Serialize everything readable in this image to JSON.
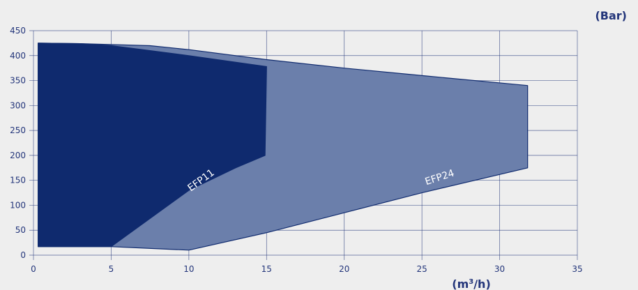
{
  "chart_data": {
    "type": "area",
    "title": "",
    "xlabel_prefix": "(m",
    "xlabel_sup": "3",
    "xlabel_suffix": "/h)",
    "ylabel": "(Bar)",
    "xlim": [
      0,
      35
    ],
    "ylim": [
      0,
      450
    ],
    "x_ticks": [
      "0",
      "5",
      "10",
      "15",
      "20",
      "25",
      "30",
      "35"
    ],
    "y_ticks": [
      "0",
      "50",
      "100",
      "150",
      "200",
      "250",
      "300",
      "350",
      "400",
      "450"
    ],
    "grid": true,
    "series": [
      {
        "name": "EFP24",
        "color": "#6b7fab",
        "points": [
          [
            0.3,
            425
          ],
          [
            3,
            424
          ],
          [
            7.5,
            420
          ],
          [
            10,
            412
          ],
          [
            15,
            392
          ],
          [
            20,
            375
          ],
          [
            25,
            360
          ],
          [
            31.8,
            340
          ],
          [
            31.8,
            175
          ],
          [
            25,
            125
          ],
          [
            20,
            85
          ],
          [
            15,
            45
          ],
          [
            10,
            10
          ],
          [
            5,
            17
          ],
          [
            0.3,
            17
          ]
        ]
      },
      {
        "name": "EFP11",
        "color": "#0f2a6e",
        "points": [
          [
            0.3,
            425
          ],
          [
            3,
            424
          ],
          [
            5,
            420
          ],
          [
            7.5,
            410
          ],
          [
            10,
            400
          ],
          [
            15,
            378
          ],
          [
            14.9,
            200
          ],
          [
            13,
            175
          ],
          [
            10,
            130
          ],
          [
            5,
            17
          ],
          [
            0.3,
            17
          ]
        ]
      }
    ],
    "annotations": [
      {
        "text": "EFP11",
        "x": 10.9,
        "y": 145,
        "angle": -36
      },
      {
        "text": "EFP24",
        "x": 26.2,
        "y": 150,
        "angle": -18
      }
    ]
  }
}
